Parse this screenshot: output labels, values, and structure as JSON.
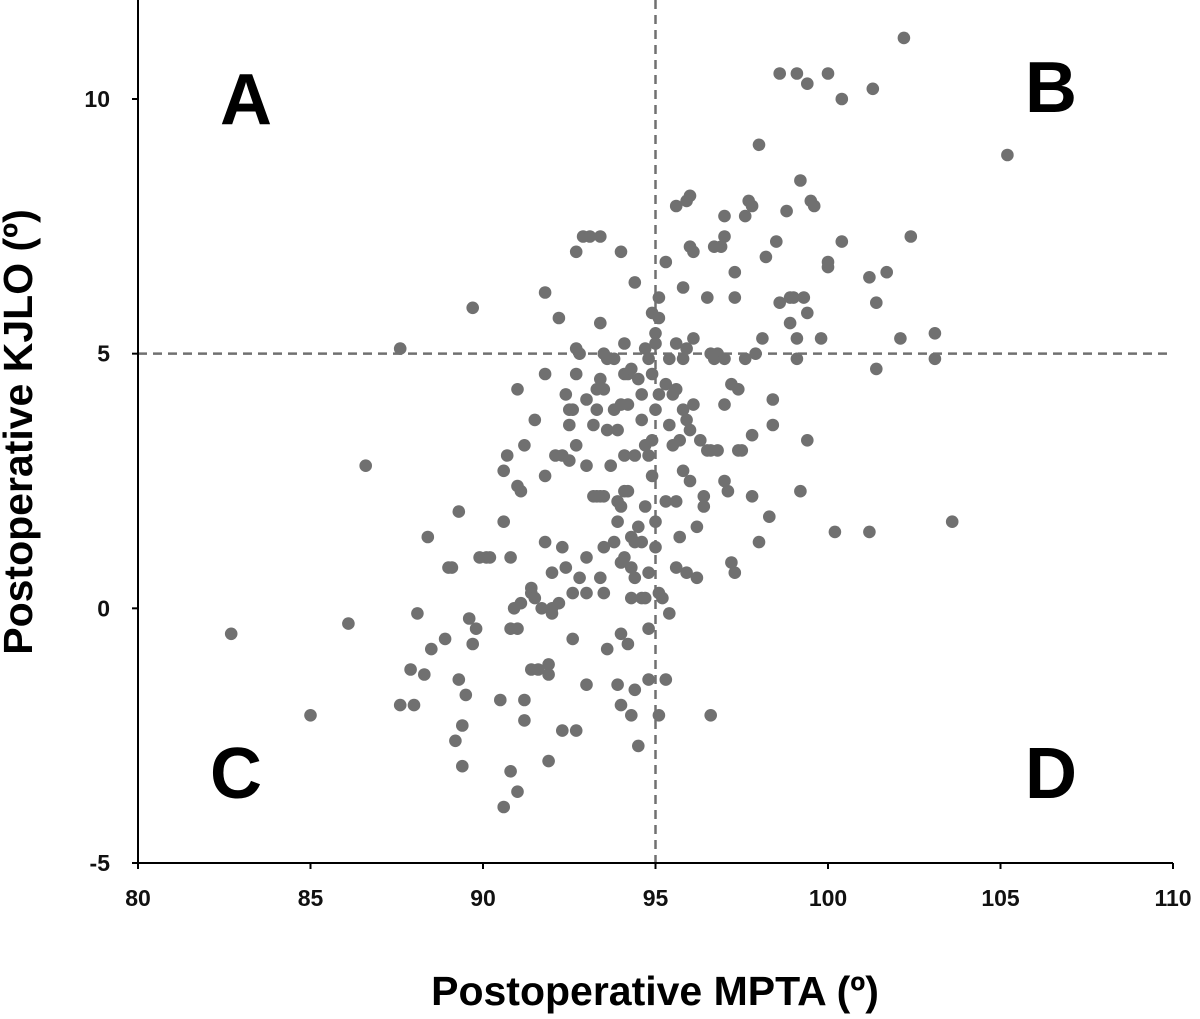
{
  "chart_data": {
    "type": "scatter",
    "xlabel": "Postoperative MPTA (º)",
    "ylabel": "Postoperative KJLO (º)",
    "xlim": [
      80,
      110
    ],
    "ylim": [
      -5,
      12
    ],
    "xticks": [
      80,
      85,
      90,
      95,
      100,
      105,
      110
    ],
    "yticks": [
      -5,
      0,
      5,
      10
    ],
    "reference_lines": {
      "x": 95,
      "y": 5,
      "style": "dashed"
    },
    "quadrant_labels": {
      "top_left": "A",
      "top_right": "B",
      "bottom_left": "C",
      "bottom_right": "D"
    },
    "marker_color": "#707070",
    "grid": false,
    "series": [
      {
        "points": [
          [
            82.7,
            -0.5
          ],
          [
            85.0,
            -2.1
          ],
          [
            86.1,
            -0.3
          ],
          [
            86.6,
            2.8
          ],
          [
            87.6,
            5.1
          ],
          [
            87.6,
            -1.9
          ],
          [
            87.9,
            -1.2
          ],
          [
            88.0,
            -1.9
          ],
          [
            88.1,
            -0.1
          ],
          [
            88.3,
            -1.3
          ],
          [
            88.4,
            1.4
          ],
          [
            88.5,
            -0.8
          ],
          [
            88.9,
            -0.6
          ],
          [
            89.0,
            0.8
          ],
          [
            89.1,
            0.8
          ],
          [
            89.2,
            -2.6
          ],
          [
            89.3,
            -1.4
          ],
          [
            89.3,
            1.9
          ],
          [
            89.4,
            -2.3
          ],
          [
            89.4,
            -3.1
          ],
          [
            89.5,
            -1.7
          ],
          [
            89.6,
            -0.2
          ],
          [
            89.7,
            5.9
          ],
          [
            89.7,
            -0.7
          ],
          [
            89.8,
            -0.4
          ],
          [
            89.9,
            1.0
          ],
          [
            90.1,
            1.0
          ],
          [
            90.2,
            1.0
          ],
          [
            90.5,
            -1.8
          ],
          [
            90.6,
            1.7
          ],
          [
            90.6,
            2.7
          ],
          [
            90.6,
            -3.9
          ],
          [
            90.7,
            3.0
          ],
          [
            90.8,
            1.0
          ],
          [
            90.8,
            -0.4
          ],
          [
            90.8,
            -3.2
          ],
          [
            90.9,
            0.0
          ],
          [
            91.0,
            4.3
          ],
          [
            91.0,
            2.4
          ],
          [
            91.0,
            -0.4
          ],
          [
            91.0,
            -3.6
          ],
          [
            91.1,
            2.3
          ],
          [
            91.1,
            0.1
          ],
          [
            91.2,
            3.2
          ],
          [
            91.2,
            -1.8
          ],
          [
            91.2,
            -2.2
          ],
          [
            91.4,
            0.4
          ],
          [
            91.4,
            0.3
          ],
          [
            91.4,
            -1.2
          ],
          [
            91.5,
            0.2
          ],
          [
            91.5,
            3.7
          ],
          [
            91.6,
            -1.2
          ],
          [
            91.7,
            0.0
          ],
          [
            91.8,
            6.2
          ],
          [
            91.8,
            4.6
          ],
          [
            91.8,
            2.6
          ],
          [
            91.8,
            1.3
          ],
          [
            91.9,
            -1.1
          ],
          [
            91.9,
            -1.3
          ],
          [
            91.9,
            -3.0
          ],
          [
            92.0,
            -0.1
          ],
          [
            92.0,
            0.7
          ],
          [
            92.0,
            0.0
          ],
          [
            92.1,
            3.0
          ],
          [
            92.2,
            5.7
          ],
          [
            92.2,
            0.1
          ],
          [
            92.3,
            1.2
          ],
          [
            92.3,
            3.0
          ],
          [
            92.3,
            -2.4
          ],
          [
            92.4,
            4.2
          ],
          [
            92.4,
            0.8
          ],
          [
            92.5,
            3.9
          ],
          [
            92.5,
            3.6
          ],
          [
            92.5,
            2.9
          ],
          [
            92.6,
            3.9
          ],
          [
            92.6,
            0.3
          ],
          [
            92.6,
            -0.6
          ],
          [
            92.7,
            7.0
          ],
          [
            92.7,
            5.1
          ],
          [
            92.7,
            4.6
          ],
          [
            92.7,
            3.2
          ],
          [
            92.7,
            -2.4
          ],
          [
            92.8,
            5.0
          ],
          [
            92.8,
            0.6
          ],
          [
            92.9,
            7.3
          ],
          [
            93.0,
            4.1
          ],
          [
            93.0,
            2.8
          ],
          [
            93.0,
            1.0
          ],
          [
            93.0,
            0.3
          ],
          [
            93.0,
            -1.5
          ],
          [
            93.1,
            7.3
          ],
          [
            93.2,
            3.6
          ],
          [
            93.2,
            2.2
          ],
          [
            93.3,
            4.3
          ],
          [
            93.3,
            3.9
          ],
          [
            93.3,
            2.2
          ],
          [
            93.4,
            7.3
          ],
          [
            93.4,
            5.6
          ],
          [
            93.4,
            4.5
          ],
          [
            93.4,
            2.2
          ],
          [
            93.4,
            0.6
          ],
          [
            93.5,
            5.0
          ],
          [
            93.5,
            4.3
          ],
          [
            93.5,
            2.2
          ],
          [
            93.5,
            1.2
          ],
          [
            93.5,
            0.3
          ],
          [
            93.6,
            4.9
          ],
          [
            93.6,
            3.5
          ],
          [
            93.6,
            -0.8
          ],
          [
            93.7,
            2.8
          ],
          [
            93.8,
            4.9
          ],
          [
            93.8,
            3.9
          ],
          [
            93.8,
            1.3
          ],
          [
            93.9,
            3.5
          ],
          [
            93.9,
            2.1
          ],
          [
            93.9,
            1.7
          ],
          [
            93.9,
            -1.5
          ],
          [
            94.0,
            7.0
          ],
          [
            94.0,
            4.0
          ],
          [
            94.0,
            2.0
          ],
          [
            94.0,
            0.9
          ],
          [
            94.0,
            -0.5
          ],
          [
            94.0,
            -1.9
          ],
          [
            94.1,
            5.2
          ],
          [
            94.1,
            4.6
          ],
          [
            94.1,
            3.0
          ],
          [
            94.1,
            2.3
          ],
          [
            94.1,
            1.0
          ],
          [
            94.2,
            4.6
          ],
          [
            94.2,
            4.0
          ],
          [
            94.2,
            2.3
          ],
          [
            94.2,
            -0.7
          ],
          [
            94.3,
            4.7
          ],
          [
            94.3,
            1.4
          ],
          [
            94.3,
            0.8
          ],
          [
            94.3,
            0.2
          ],
          [
            94.3,
            -2.1
          ],
          [
            94.4,
            6.4
          ],
          [
            94.4,
            3.0
          ],
          [
            94.4,
            1.3
          ],
          [
            94.4,
            0.6
          ],
          [
            94.4,
            -1.6
          ],
          [
            94.5,
            4.5
          ],
          [
            94.5,
            1.6
          ],
          [
            94.5,
            -2.7
          ],
          [
            94.6,
            4.2
          ],
          [
            94.6,
            3.7
          ],
          [
            94.6,
            1.3
          ],
          [
            94.6,
            0.2
          ],
          [
            94.7,
            5.1
          ],
          [
            94.7,
            3.2
          ],
          [
            94.7,
            2.0
          ],
          [
            94.7,
            0.2
          ],
          [
            94.8,
            4.9
          ],
          [
            94.8,
            3.0
          ],
          [
            94.8,
            0.7
          ],
          [
            94.8,
            -0.4
          ],
          [
            94.8,
            -1.4
          ],
          [
            94.9,
            5.8
          ],
          [
            94.9,
            4.6
          ],
          [
            94.9,
            3.3
          ],
          [
            94.9,
            2.6
          ],
          [
            95.0,
            5.4
          ],
          [
            95.0,
            5.2
          ],
          [
            95.0,
            3.9
          ],
          [
            95.0,
            1.7
          ],
          [
            95.0,
            1.2
          ],
          [
            95.1,
            6.1
          ],
          [
            95.1,
            5.7
          ],
          [
            95.1,
            4.2
          ],
          [
            95.1,
            0.3
          ],
          [
            95.1,
            -2.1
          ],
          [
            95.2,
            0.2
          ],
          [
            95.3,
            6.8
          ],
          [
            95.3,
            4.4
          ],
          [
            95.3,
            2.1
          ],
          [
            95.3,
            -1.4
          ],
          [
            95.4,
            4.9
          ],
          [
            95.4,
            3.6
          ],
          [
            95.4,
            -0.1
          ],
          [
            95.5,
            4.2
          ],
          [
            95.5,
            3.2
          ],
          [
            95.6,
            7.9
          ],
          [
            95.6,
            5.2
          ],
          [
            95.6,
            4.3
          ],
          [
            95.6,
            2.1
          ],
          [
            95.6,
            0.8
          ],
          [
            95.7,
            3.3
          ],
          [
            95.7,
            1.4
          ],
          [
            95.8,
            6.3
          ],
          [
            95.8,
            4.9
          ],
          [
            95.8,
            3.9
          ],
          [
            95.8,
            2.7
          ],
          [
            95.9,
            8.0
          ],
          [
            95.9,
            5.1
          ],
          [
            95.9,
            3.7
          ],
          [
            95.9,
            0.7
          ],
          [
            96.0,
            8.1
          ],
          [
            96.0,
            7.1
          ],
          [
            96.0,
            3.5
          ],
          [
            96.0,
            2.5
          ],
          [
            96.1,
            7.0
          ],
          [
            96.1,
            5.3
          ],
          [
            96.1,
            4.0
          ],
          [
            96.2,
            1.6
          ],
          [
            96.2,
            0.6
          ],
          [
            96.3,
            3.3
          ],
          [
            96.4,
            2.2
          ],
          [
            96.4,
            2.0
          ],
          [
            96.5,
            6.1
          ],
          [
            96.5,
            3.1
          ],
          [
            96.6,
            5.0
          ],
          [
            96.6,
            3.1
          ],
          [
            96.6,
            -2.1
          ],
          [
            96.7,
            7.1
          ],
          [
            96.7,
            4.9
          ],
          [
            96.8,
            5.0
          ],
          [
            96.8,
            3.1
          ],
          [
            96.9,
            7.1
          ],
          [
            97.0,
            7.7
          ],
          [
            97.0,
            7.3
          ],
          [
            97.0,
            4.9
          ],
          [
            97.0,
            4.0
          ],
          [
            97.0,
            2.5
          ],
          [
            97.1,
            2.3
          ],
          [
            97.2,
            4.4
          ],
          [
            97.2,
            0.9
          ],
          [
            97.3,
            6.6
          ],
          [
            97.3,
            6.1
          ],
          [
            97.3,
            0.7
          ],
          [
            97.4,
            4.3
          ],
          [
            97.4,
            3.1
          ],
          [
            97.5,
            3.1
          ],
          [
            97.6,
            7.7
          ],
          [
            97.6,
            4.9
          ],
          [
            97.7,
            8.0
          ],
          [
            97.8,
            7.9
          ],
          [
            97.8,
            3.4
          ],
          [
            97.8,
            2.2
          ],
          [
            97.9,
            5.0
          ],
          [
            98.0,
            9.1
          ],
          [
            98.0,
            1.3
          ],
          [
            98.1,
            5.3
          ],
          [
            98.2,
            6.9
          ],
          [
            98.3,
            1.8
          ],
          [
            98.4,
            4.1
          ],
          [
            98.4,
            3.6
          ],
          [
            98.5,
            7.2
          ],
          [
            98.6,
            10.5
          ],
          [
            98.6,
            6.0
          ],
          [
            98.8,
            7.8
          ],
          [
            98.9,
            5.6
          ],
          [
            98.9,
            6.1
          ],
          [
            99.0,
            6.1
          ],
          [
            99.1,
            10.5
          ],
          [
            99.1,
            5.3
          ],
          [
            99.1,
            4.9
          ],
          [
            99.2,
            8.4
          ],
          [
            99.2,
            2.3
          ],
          [
            99.3,
            6.1
          ],
          [
            99.4,
            10.3
          ],
          [
            99.4,
            5.8
          ],
          [
            99.4,
            3.3
          ],
          [
            99.5,
            8.0
          ],
          [
            99.6,
            7.9
          ],
          [
            99.8,
            5.3
          ],
          [
            100.0,
            10.5
          ],
          [
            100.0,
            6.7
          ],
          [
            100.0,
            6.8
          ],
          [
            100.2,
            1.5
          ],
          [
            100.4,
            10.0
          ],
          [
            100.4,
            7.2
          ],
          [
            101.2,
            6.5
          ],
          [
            101.2,
            1.5
          ],
          [
            101.3,
            10.2
          ],
          [
            101.4,
            6.0
          ],
          [
            101.4,
            4.7
          ],
          [
            101.7,
            6.6
          ],
          [
            102.1,
            5.3
          ],
          [
            102.2,
            11.2
          ],
          [
            102.4,
            7.3
          ],
          [
            103.1,
            4.9
          ],
          [
            103.1,
            5.4
          ],
          [
            103.6,
            1.7
          ],
          [
            105.2,
            8.9
          ]
        ]
      }
    ]
  }
}
